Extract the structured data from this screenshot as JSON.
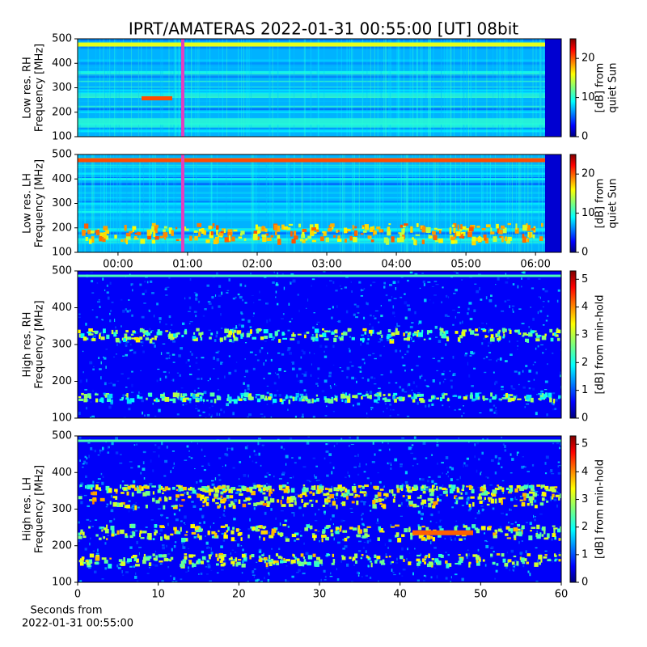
{
  "title": "IPRT/AMATERAS 2022-01-31 00:55:00 [UT]   08bit",
  "chart_data": [
    {
      "type": "heatmap",
      "ylabel": [
        "Low res. RH",
        "Frequency [MHz]"
      ],
      "ylim": [
        100,
        500
      ],
      "yticks": [
        100,
        200,
        300,
        400,
        500
      ],
      "xlim": [
        -0.58,
        6.37
      ],
      "colorbar": {
        "label": [
          "[dB] from",
          "quiet Sun"
        ],
        "clim": [
          0,
          25
        ],
        "ticks": [
          0,
          10,
          20
        ]
      }
    },
    {
      "type": "heatmap",
      "ylabel": [
        "Low res. LH",
        "Frequency [MHz]"
      ],
      "ylim": [
        100,
        500
      ],
      "yticks": [
        100,
        200,
        300,
        400,
        500
      ],
      "xlim": [
        -0.58,
        6.37
      ],
      "xticks": [
        {
          "value": 0,
          "label": "00:00"
        },
        {
          "value": 1,
          "label": "01:00"
        },
        {
          "value": 2,
          "label": "02:00"
        },
        {
          "value": 3,
          "label": "03:00"
        },
        {
          "value": 4,
          "label": "04:00"
        },
        {
          "value": 5,
          "label": "05:00"
        },
        {
          "value": 6,
          "label": "06:00"
        }
      ],
      "colorbar": {
        "label": [
          "[dB] from",
          "quiet Sun"
        ],
        "clim": [
          0,
          25
        ],
        "ticks": [
          0,
          10,
          20
        ]
      }
    },
    {
      "type": "heatmap",
      "ylabel": [
        "High res. RH",
        "Frequency [MHz]"
      ],
      "ylim": [
        100,
        500
      ],
      "yticks": [
        100,
        200,
        300,
        400,
        500
      ],
      "xlim": [
        0,
        60
      ],
      "colorbar": {
        "label": [
          "[dB] from min-hold"
        ],
        "clim": [
          0,
          5.3
        ],
        "ticks": [
          0,
          1,
          2,
          3,
          4,
          5
        ]
      }
    },
    {
      "type": "heatmap",
      "ylabel": [
        "High res. LH",
        "Frequency [MHz]"
      ],
      "ylim": [
        100,
        500
      ],
      "yticks": [
        100,
        200,
        300,
        400,
        500
      ],
      "xlim": [
        0,
        60
      ],
      "xticks": [
        0,
        10,
        20,
        30,
        40,
        50,
        60
      ],
      "xlabel": [
        "Seconds from",
        "2022-01-31 00:55:00"
      ],
      "colorbar": {
        "label": [
          "[dB] from min-hold"
        ],
        "clim": [
          0,
          5.3
        ],
        "ticks": [
          0,
          1,
          2,
          3,
          4,
          5
        ]
      }
    }
  ]
}
